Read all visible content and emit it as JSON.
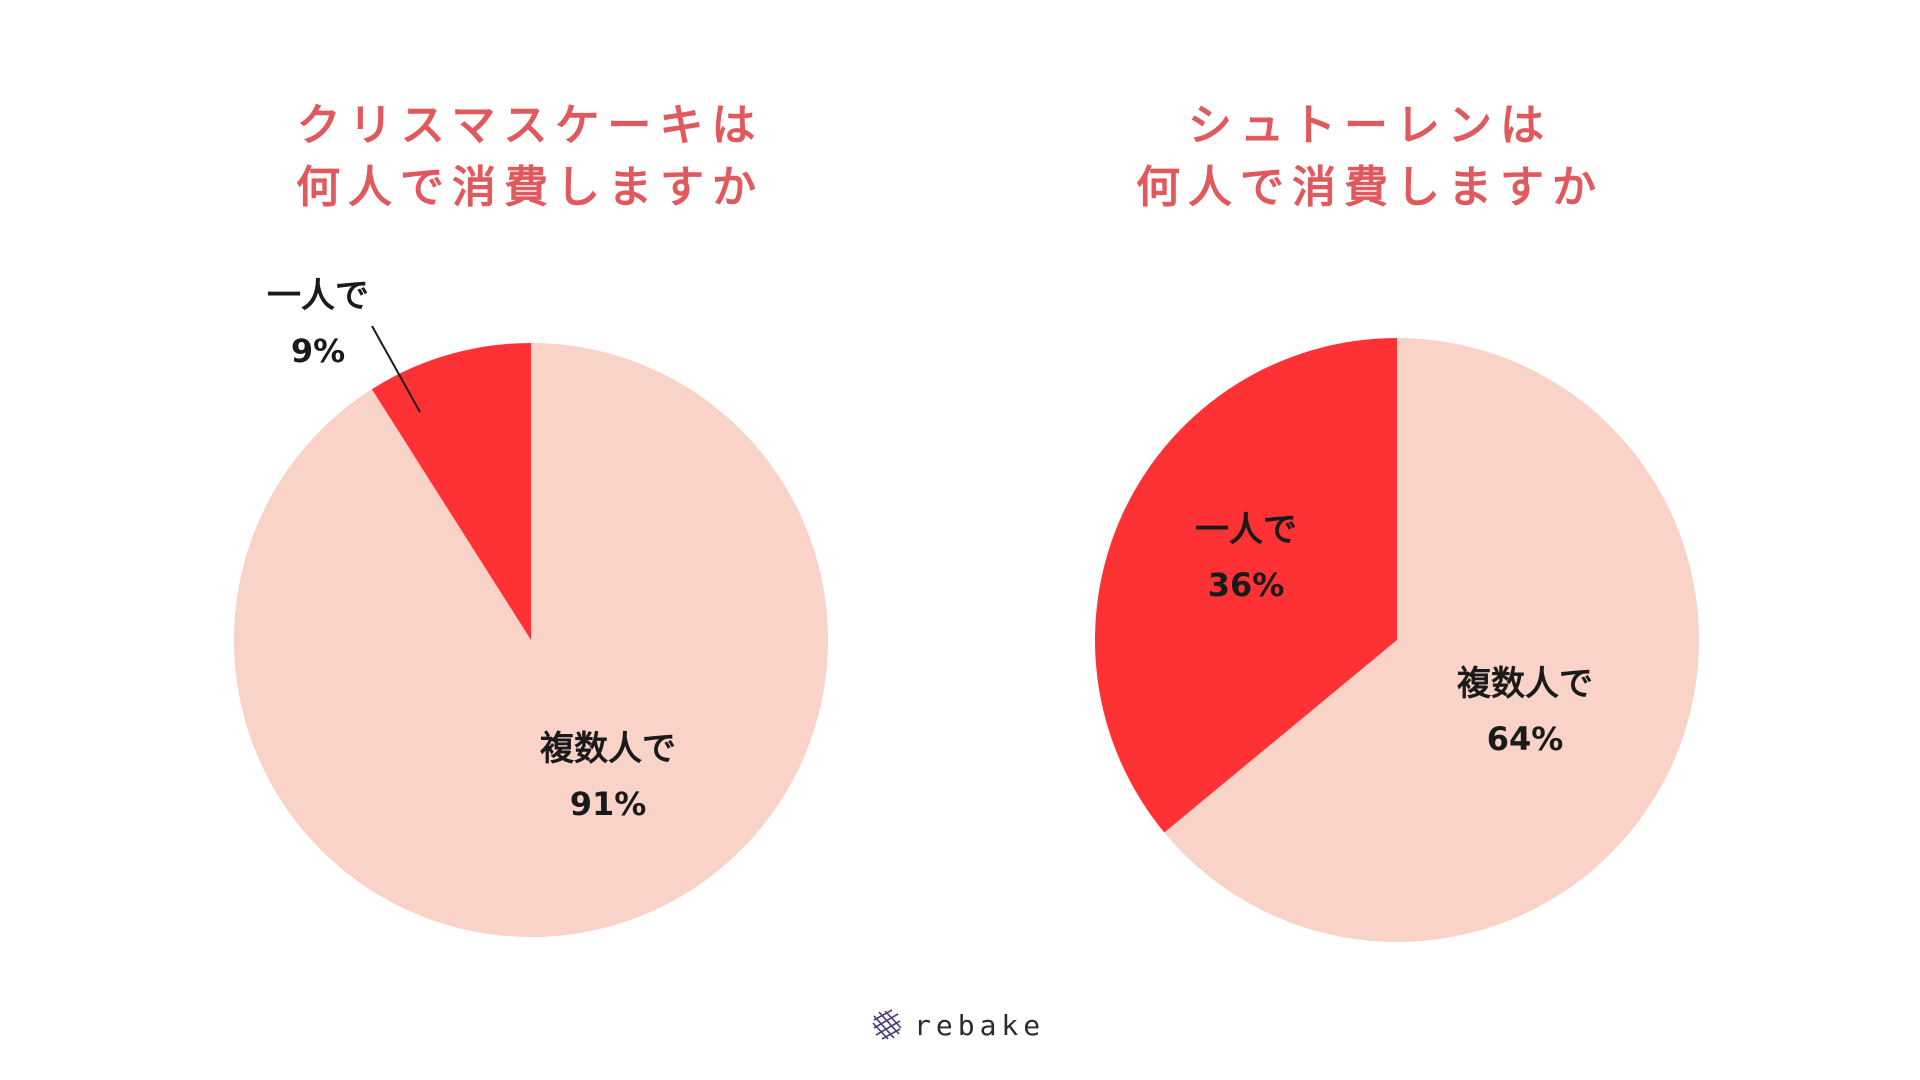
{
  "chart_data": [
    {
      "type": "pie",
      "title": "クリスマスケーキは 何人で消費しますか",
      "title_lines": [
        "クリスマスケーキは",
        "何人で消費しますか"
      ],
      "slices": [
        {
          "label": "一人で",
          "value": 9,
          "value_label": "9%",
          "color": "#fe3234"
        },
        {
          "label": "複数人で",
          "value": 91,
          "value_label": "91%",
          "color": "#f9d2c8"
        }
      ]
    },
    {
      "type": "pie",
      "title": "シュトーレンは 何人で消費しますか",
      "title_lines": [
        "シュトーレンは",
        "何人で消費しますか"
      ],
      "slices": [
        {
          "label": "一人で",
          "value": 36,
          "value_label": "36%",
          "color": "#fe3234"
        },
        {
          "label": "複数人で",
          "value": 64,
          "value_label": "64%",
          "color": "#f9d2c8"
        }
      ]
    }
  ],
  "brand": {
    "name": "rebake",
    "icon": "grid-logo-icon"
  },
  "colors": {
    "title": "#e0595d",
    "accent": "#fe3234",
    "light": "#f9d2c8"
  }
}
